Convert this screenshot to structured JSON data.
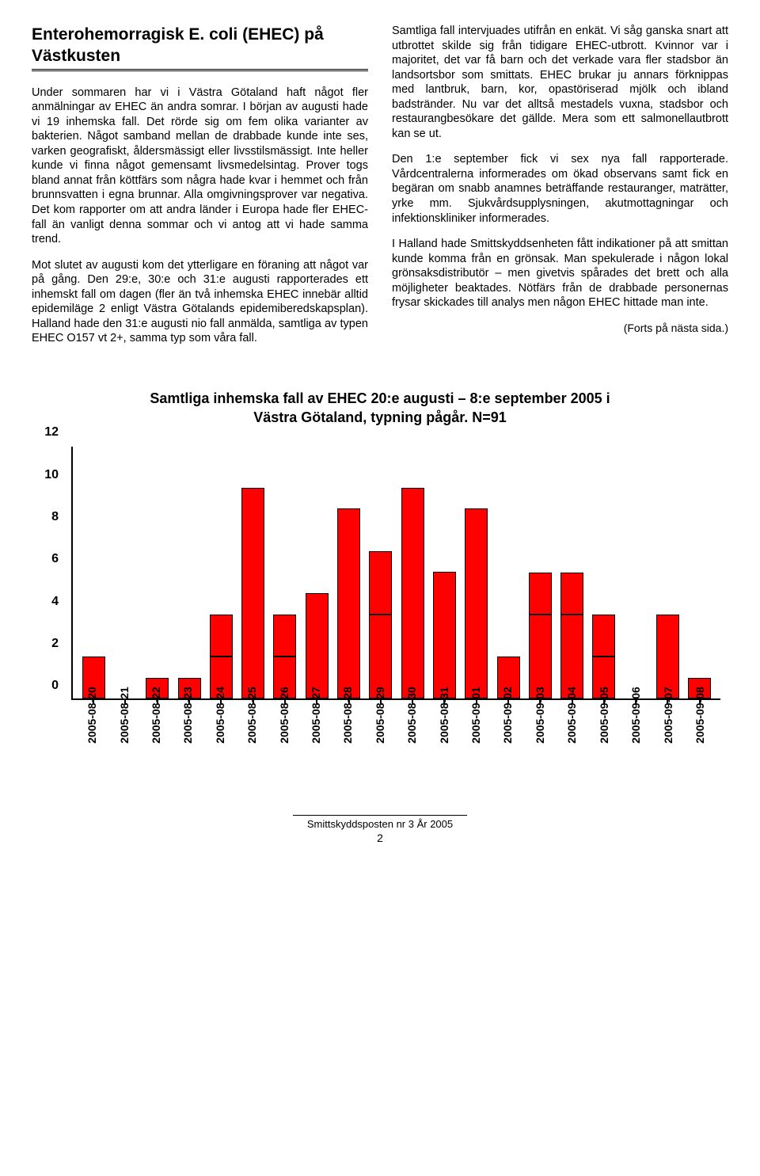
{
  "header": {
    "title": "Enterohemorragisk E. coli (EHEC) på Västkusten"
  },
  "left_column": {
    "p1": "Under sommaren har vi i Västra Götaland haft något fler anmälningar av EHEC än andra somrar. I början av augusti hade vi 19 inhemska fall. Det rörde sig om fem olika varianter av bakterien. Något samband mellan de drabbade kunde inte ses, varken geografiskt, åldersmässigt eller livsstilsmässigt. Inte heller kunde vi finna något gemensamt livsmedelsintag. Prover togs bland annat från köttfärs som några hade kvar i hemmet och från brunnsvatten i egna brunnar. Alla omgivningsprover var negativa. Det kom rapporter om att andra länder i Europa hade fler EHEC-fall än vanligt denna sommar och vi antog att vi hade samma trend.",
    "p2": "Mot slutet av augusti kom det ytterligare en föraning att något var på gång. Den 29:e, 30:e och 31:e augusti rapporterades ett inhemskt fall om dagen (fler än två inhemska EHEC innebär alltid epidemiläge 2 enligt Västra Götalands epidemiberedskapsplan). Halland hade den 31:e augusti nio fall anmälda, samtliga av typen EHEC O157 vt 2+, samma typ som våra fall."
  },
  "right_column": {
    "p1": "Samtliga fall intervjuades utifrån en enkät. Vi såg ganska snart att utbrottet skilde sig från tidigare EHEC-utbrott. Kvinnor var i majoritet, det var få barn och det verkade vara fler stadsbor än landsortsbor som smittats. EHEC brukar ju annars förknippas med lantbruk, barn, kor, opastöriserad mjölk och ibland badstränder. Nu var det alltså mestadels vuxna, stadsbor och restaurangbesökare det gällde. Mera som ett salmonellautbrott kan se ut.",
    "p2": "Den 1:e september fick vi sex nya fall rapporterade. Vårdcentralerna informerades om ökad observans samt fick en begäran om snabb anamnes beträffande restauranger, maträtter, yrke mm. Sjukvårdsupplysningen, akutmottagningar och infektionskliniker informerades.",
    "p3": "I Halland hade Smittskyddsenheten fått indikationer på att smittan kunde komma från en grönsak. Man spekulerade i någon lokal grönsaksdistributör – men givetvis spårades det brett och alla möjligheter beaktades. Nötfärs från de drabbade personernas frysar skickades till analys men någon EHEC hittade man inte.",
    "cont": "(Forts på nästa sida.)"
  },
  "chart": {
    "title": "Samtliga inhemska fall av EHEC 20:e augusti – 8:e september 2005 i Västra Götaland, typning pågår. N=91",
    "type": "bar",
    "ylim": [
      0,
      12
    ],
    "yticks": [
      0,
      2,
      4,
      6,
      8,
      10,
      12
    ],
    "tick_fontsize": 16,
    "bar_color": "#ff0000",
    "bar_border": "#000000",
    "axis_color": "#000000",
    "background_color": "#ffffff",
    "categories": [
      "2005-08-20",
      "2005-08-21",
      "2005-08-22",
      "2005-08-23",
      "2005-08-24",
      "2005-08-25",
      "2005-08-26",
      "2005-08-27",
      "2005-08-28",
      "2005-08-29",
      "2005-08-30",
      "2005-08-31",
      "2005-09-01",
      "2005-09-02",
      "2005-09-03",
      "2005-09-04",
      "2005-09-05",
      "2005-09-06",
      "2005-09-07",
      "2005-09-08"
    ],
    "values": [
      2,
      0,
      1,
      1,
      4,
      10,
      4,
      5,
      9,
      7,
      10,
      6,
      9,
      2,
      6,
      6,
      4,
      0,
      4,
      1
    ],
    "segments": [
      [
        2
      ],
      [
        0
      ],
      [
        1
      ],
      [
        1
      ],
      [
        2,
        2
      ],
      [
        10
      ],
      [
        2,
        2
      ],
      [
        5
      ],
      [
        9
      ],
      [
        4,
        3
      ],
      [
        10
      ],
      [
        6
      ],
      [
        9
      ],
      [
        2
      ],
      [
        4,
        2
      ],
      [
        4,
        2
      ],
      [
        2,
        2
      ],
      [
        0
      ],
      [
        4
      ],
      [
        1
      ]
    ]
  },
  "footer": {
    "text": "Smittskyddsposten nr 3 År 2005",
    "page": "2"
  }
}
